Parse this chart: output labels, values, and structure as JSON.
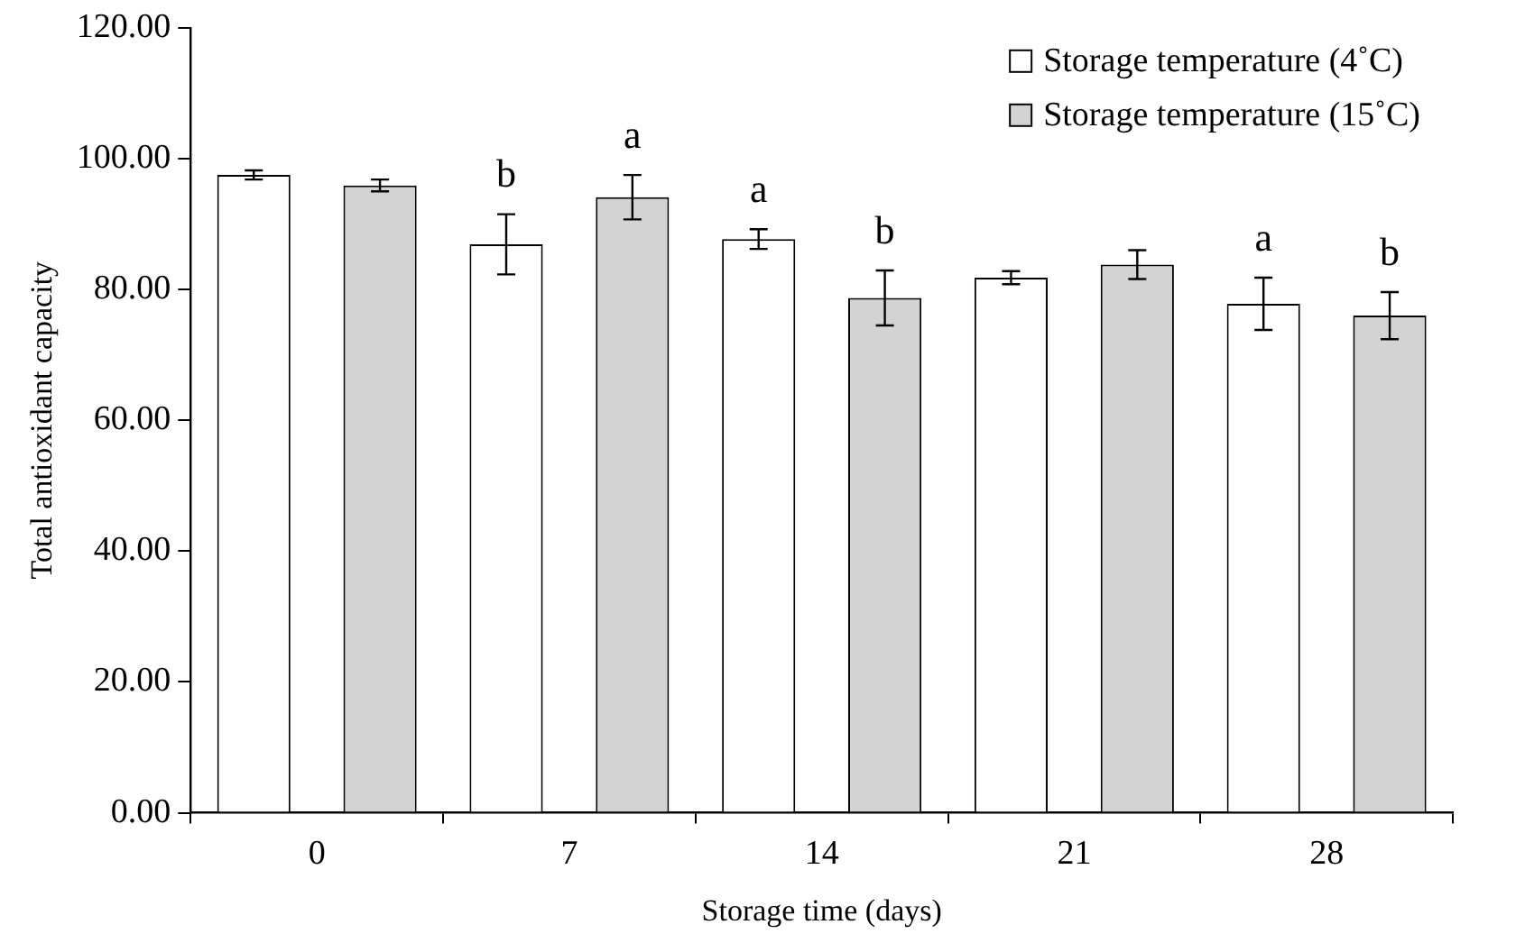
{
  "chart_data": {
    "type": "bar",
    "xlabel": "Storage time (days)",
    "ylabel": "Total antioxidant capacity",
    "categories": [
      "0",
      "7",
      "14",
      "21",
      "28"
    ],
    "series": [
      {
        "name": "Storage temperature (4˚C)",
        "color": "#ffffff",
        "values": [
          97.5,
          86.9,
          87.7,
          81.8,
          77.8
        ],
        "errors": [
          0.7,
          4.6,
          1.5,
          1.0,
          4.0
        ]
      },
      {
        "name": "Storage temperature (15˚C)",
        "color": "#d3d3d3",
        "values": [
          95.9,
          94.1,
          78.7,
          83.8,
          76.0
        ],
        "errors": [
          0.9,
          3.4,
          4.2,
          2.2,
          3.6
        ]
      }
    ],
    "ylim": [
      0,
      120
    ],
    "yticks": [
      {
        "value": 0,
        "label": "0.00"
      },
      {
        "value": 20,
        "label": "20.00"
      },
      {
        "value": 40,
        "label": "40.00"
      },
      {
        "value": 60,
        "label": "60.00"
      },
      {
        "value": 80,
        "label": "80.00"
      },
      {
        "value": 100,
        "label": "100.00"
      },
      {
        "value": 120,
        "label": "120.00"
      }
    ],
    "annotations": [
      "b",
      "a",
      "a",
      "b",
      "a",
      "b"
    ],
    "grid": false,
    "legend": "top right"
  }
}
